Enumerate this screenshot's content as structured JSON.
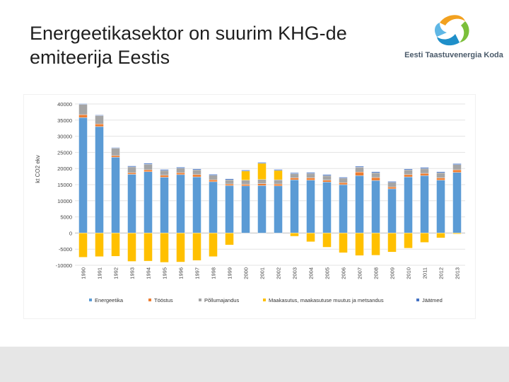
{
  "slide": {
    "title": "Energeetikasektor on suurim KHG-de emiteerija Eestis",
    "logo_text": "Eesti Taastuvenergia Koda"
  },
  "chart_data": {
    "type": "bar",
    "stacked": true,
    "ylabel": "kt CO2 ekv",
    "ylim": [
      -10000,
      40000
    ],
    "yticks": [
      40000,
      35000,
      30000,
      25000,
      20000,
      15000,
      10000,
      5000,
      0,
      -5000,
      -10000
    ],
    "grid": true,
    "legend_position": "bottom",
    "categories": [
      "1990",
      "1991",
      "1992",
      "1993",
      "1994",
      "1995",
      "1996",
      "1997",
      "1998",
      "1999",
      "2000",
      "2001",
      "2002",
      "2003",
      "2004",
      "2005",
      "2006",
      "2007",
      "2008",
      "2009",
      "2010",
      "2011",
      "2012",
      "2013"
    ],
    "series": [
      {
        "name": "Energeetika",
        "color": "#5b9bd5",
        "values": [
          35800,
          33000,
          23500,
          18200,
          19000,
          17300,
          18100,
          17400,
          15900,
          14700,
          14600,
          14700,
          14600,
          16500,
          16400,
          15800,
          15000,
          17800,
          16300,
          13700,
          17400,
          17800,
          16400,
          18800
        ]
      },
      {
        "name": "Tööstus",
        "color": "#ed7d31",
        "values": [
          900,
          800,
          500,
          500,
          600,
          600,
          600,
          700,
          600,
          500,
          500,
          600,
          600,
          600,
          700,
          600,
          600,
          1100,
          900,
          600,
          700,
          700,
          700,
          800
        ]
      },
      {
        "name": "Põllumajandus",
        "color": "#a5a5a5",
        "values": [
          3200,
          2600,
          2300,
          1800,
          1700,
          1500,
          1400,
          1500,
          1400,
          1300,
          1300,
          1300,
          1300,
          1300,
          1400,
          1400,
          1400,
          1500,
          1500,
          1400,
          1500,
          1500,
          1600,
          1600
        ]
      },
      {
        "name": "Maakasutus, maakasutuse muutus ja metsandus",
        "color": "#ffc000",
        "values": [
          -7500,
          -7300,
          -7200,
          -8800,
          -8700,
          -9100,
          -9000,
          -8500,
          -7300,
          -3700,
          2800,
          5000,
          2900,
          -1000,
          -2700,
          -4400,
          -6100,
          -7000,
          -6900,
          -5900,
          -4700,
          -2900,
          -1500,
          -300
        ]
      },
      {
        "name": "Jäätmed",
        "color": "#4472c4",
        "values": [
          200,
          200,
          200,
          300,
          300,
          300,
          300,
          300,
          300,
          300,
          300,
          300,
          300,
          300,
          300,
          300,
          300,
          300,
          300,
          300,
          300,
          300,
          300,
          300
        ]
      }
    ]
  }
}
